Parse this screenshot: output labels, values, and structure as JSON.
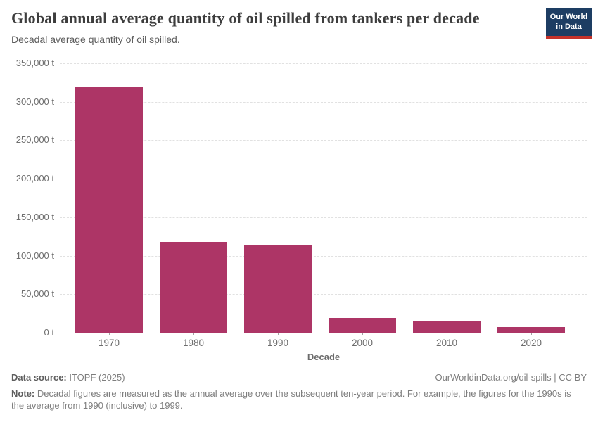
{
  "header": {
    "title": "Global annual average quantity of oil spilled from tankers per decade",
    "subtitle": "Decadal average quantity of oil spilled.",
    "logo": {
      "line1": "Our World",
      "line2": "in Data",
      "bg_color": "#1d3d63",
      "accent_color": "#c5322a"
    }
  },
  "chart_data": {
    "type": "bar",
    "title": "Global annual average quantity of oil spilled from tankers per decade",
    "subtitle": "Decadal average quantity of oil spilled.",
    "categories": [
      "1970",
      "1980",
      "1990",
      "2000",
      "2010",
      "2020"
    ],
    "values": [
      320000,
      118000,
      113000,
      19500,
      16000,
      7000
    ],
    "unit": "t",
    "xlabel": "Decade",
    "ylabel": "",
    "ylim": [
      0,
      350000
    ],
    "ytick_step": 50000,
    "ytick_labels": [
      "0 t",
      "50,000 t",
      "100,000 t",
      "150,000 t",
      "200,000 t",
      "250,000 t",
      "300,000 t",
      "350,000 t"
    ],
    "grid": "horizontal dashed, zero line solid",
    "legend": "none",
    "bar_color": "#ad3566"
  },
  "footer": {
    "source_label": "Data source:",
    "source_value": " ITOPF (2025)",
    "credit": "OurWorldinData.org/oil-spills | CC BY",
    "note_label": "Note:",
    "note_value": " Decadal figures are measured as the annual average over the subsequent ten-year period. For example, the figures for the 1990s is the average from 1990 (inclusive) to 1999."
  }
}
